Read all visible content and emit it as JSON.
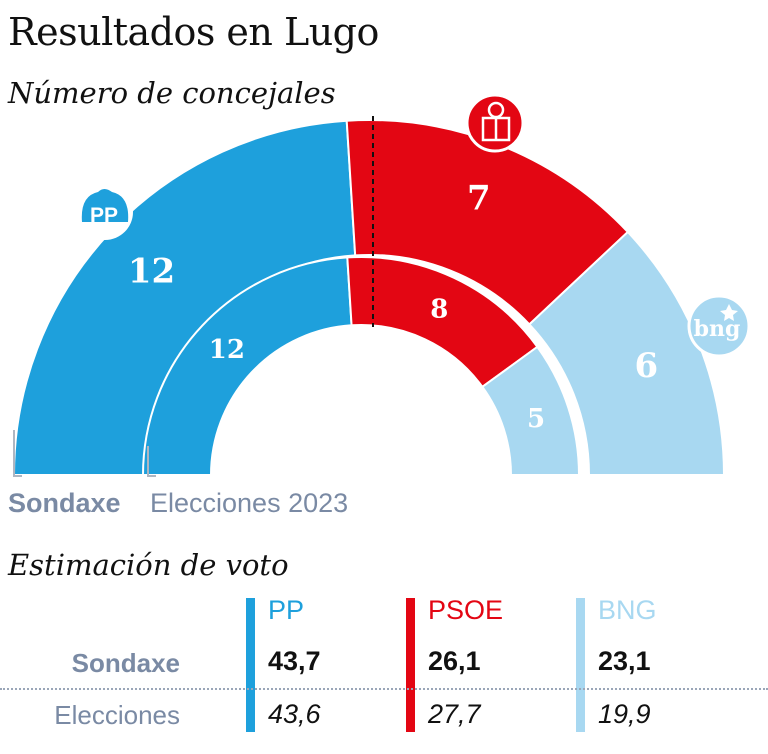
{
  "title": "Resultados en Lugo",
  "subtitle": "Número de concejales",
  "section_title": "Estimación de voto",
  "colors": {
    "PP": "#1ea0dc",
    "PSOE": "#e30613",
    "BNG": "#a8d8f1",
    "label_gray": "#7a8aa4",
    "rule_gray": "#aeb6c2"
  },
  "chart_data": [
    {
      "type": "semicircle-parliament",
      "categories": [
        "PP",
        "PSOE",
        "BNG"
      ],
      "series": [
        {
          "name": "Sondaxe",
          "values": [
            12,
            7,
            6
          ]
        },
        {
          "name": "Elecciones 2023",
          "values": [
            12,
            8,
            5
          ]
        }
      ],
      "majority_marker": true
    },
    {
      "type": "table",
      "title": "Estimación de voto",
      "columns": [
        "PP",
        "PSOE",
        "BNG"
      ],
      "rows": [
        {
          "label": "Sondaxe",
          "values": [
            "43,7",
            "26,1",
            "23,1"
          ]
        },
        {
          "label": "Elecciones",
          "values": [
            "43,6",
            "27,7",
            "19,9"
          ]
        }
      ]
    }
  ],
  "logos": {
    "pp": "pp-logo-icon",
    "psoe": "psoe-rose-logo-icon",
    "bng": "bng-logo-icon"
  }
}
